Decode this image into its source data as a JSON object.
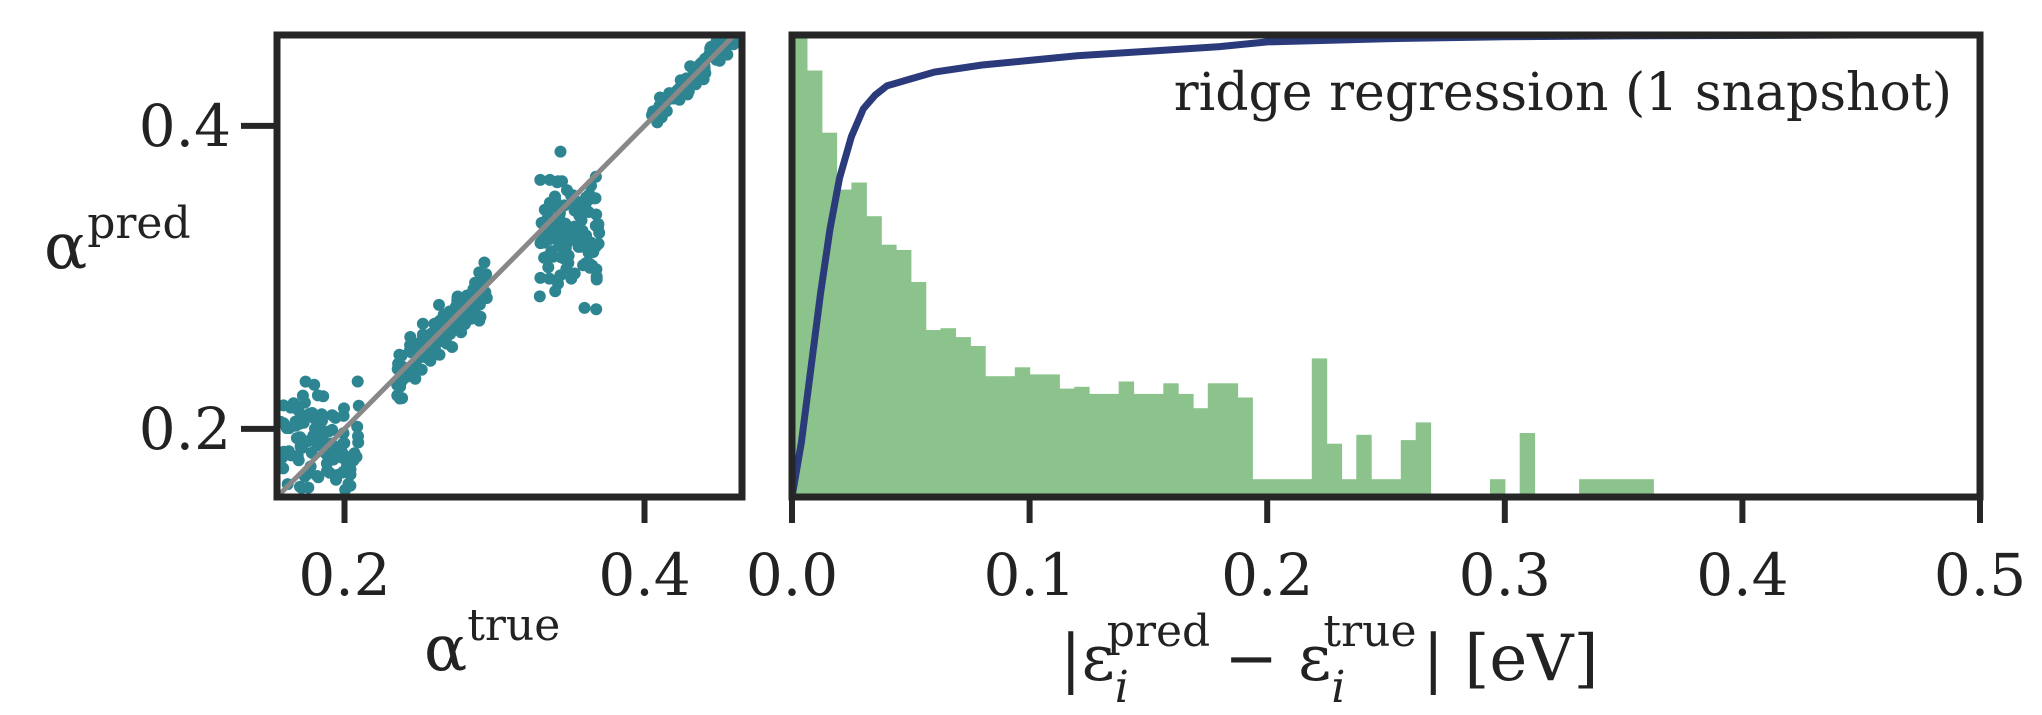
{
  "chart_data": [
    {
      "type": "scatter",
      "xlabel": {
        "base": "α",
        "sup": "true"
      },
      "ylabel": {
        "base": "α",
        "sup": "pred"
      },
      "xlim": [
        0.155,
        0.465
      ],
      "ylim": [
        0.155,
        0.46
      ],
      "xticks": [
        0.2,
        0.4
      ],
      "yticks": [
        0.2,
        0.4
      ],
      "xtick_labels": [
        "0.2",
        "0.4"
      ],
      "ytick_labels": [
        "0.2",
        "0.4"
      ],
      "grid": false,
      "point_color": "#2e8592",
      "identity_line_color": "#888888",
      "identity_line": [
        [
          0.155,
          0.155
        ],
        [
          0.465,
          0.465
        ]
      ],
      "clusters": [
        {
          "x_range": [
            0.157,
            0.21
          ],
          "y_center": 0.19,
          "y_spread": 0.018,
          "n": 110
        },
        {
          "x_range": [
            0.235,
            0.295
          ],
          "y_center_offset": 0.0,
          "y_spread": 0.008,
          "n": 140
        },
        {
          "x_range": [
            0.33,
            0.37
          ],
          "y_center": 0.33,
          "y_spread": 0.02,
          "n": 130
        },
        {
          "x_range": [
            0.405,
            0.46
          ],
          "y_center_offset": 0.0,
          "y_spread": 0.004,
          "n": 90
        }
      ]
    },
    {
      "type": "bar",
      "subtype": "histogram_with_cdf",
      "annotation": "ridge regression (1 snapshot)",
      "xlabel": {
        "parts": [
          "|ε",
          "− ε",
          "| [eV]"
        ],
        "sub1": "i",
        "sup1": "pred",
        "sub2": "i",
        "sup2": "true"
      },
      "xlim": [
        0.0,
        0.5
      ],
      "ylim_hist": [
        0,
        26
      ],
      "xticks": [
        0.0,
        0.1,
        0.2,
        0.3,
        0.4,
        0.5
      ],
      "xtick_labels": [
        "0.0",
        "0.1",
        "0.2",
        "0.3",
        "0.4",
        "0.5"
      ],
      "grid": false,
      "histogram_color": "#8cc38c",
      "bin_width": 0.00625,
      "bin_start": 0.0,
      "histogram_values": [
        26,
        24,
        20.5,
        17.3,
        17.7,
        15.8,
        14.2,
        13.9,
        12.1,
        9.4,
        9.5,
        9.0,
        8.5,
        6.8,
        6.8,
        7.3,
        6.9,
        6.9,
        6.1,
        6.2,
        5.8,
        5.8,
        6.5,
        5.8,
        5.8,
        6.4,
        5.8,
        5.0,
        6.4,
        6.4,
        5.6,
        1.0,
        1.0,
        1.0,
        1.0,
        7.8,
        3.0,
        1.0,
        3.5,
        1.0,
        1.0,
        3.2,
        4.2,
        0,
        0,
        0,
        0,
        1.0,
        0,
        3.6,
        0,
        0,
        0,
        1.0,
        1.0,
        1.0,
        1.0,
        1.0,
        0,
        0,
        0,
        0,
        0,
        0,
        0,
        0,
        0,
        0,
        0,
        0,
        0,
        0,
        0,
        0,
        0,
        0,
        0,
        0,
        0,
        0
      ],
      "cdf_color": "#2b3a7a",
      "cdf_x": [
        0.0,
        0.004,
        0.008,
        0.012,
        0.016,
        0.02,
        0.025,
        0.03,
        0.035,
        0.04,
        0.05,
        0.06,
        0.08,
        0.1,
        0.12,
        0.15,
        0.18,
        0.2,
        0.25,
        0.3,
        0.35,
        0.4,
        0.45,
        0.5
      ],
      "cdf_y": [
        0.0,
        0.12,
        0.28,
        0.44,
        0.58,
        0.69,
        0.78,
        0.84,
        0.87,
        0.89,
        0.905,
        0.92,
        0.935,
        0.945,
        0.955,
        0.965,
        0.975,
        0.985,
        0.992,
        0.996,
        0.998,
        0.999,
        1.0,
        1.0
      ]
    }
  ]
}
